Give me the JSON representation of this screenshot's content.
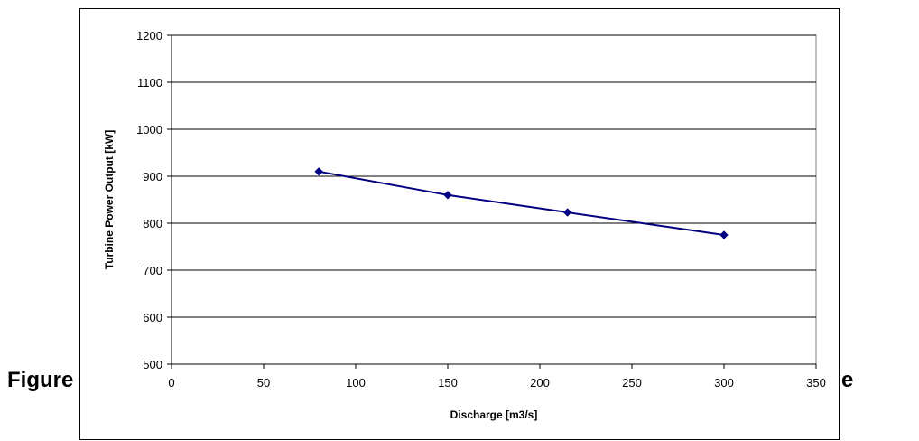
{
  "caption": {
    "left_visible": "Figure",
    "right_visible": "harge"
  },
  "chart_data": {
    "type": "line",
    "title": "",
    "xlabel": "Discharge [m3/s]",
    "ylabel": "Turbine Power Output [kW]",
    "xlim": [
      0,
      350
    ],
    "ylim": [
      500,
      1200
    ],
    "x_ticks": [
      0,
      50,
      100,
      150,
      200,
      250,
      300,
      350
    ],
    "y_ticks": [
      500,
      600,
      700,
      800,
      900,
      1000,
      1100,
      1200
    ],
    "grid": "horizontal",
    "legend": "none",
    "series": [
      {
        "color": "#000080",
        "marker": "diamond",
        "x": [
          80,
          150,
          215,
          300
        ],
        "y": [
          910,
          860,
          823,
          775
        ]
      }
    ]
  }
}
